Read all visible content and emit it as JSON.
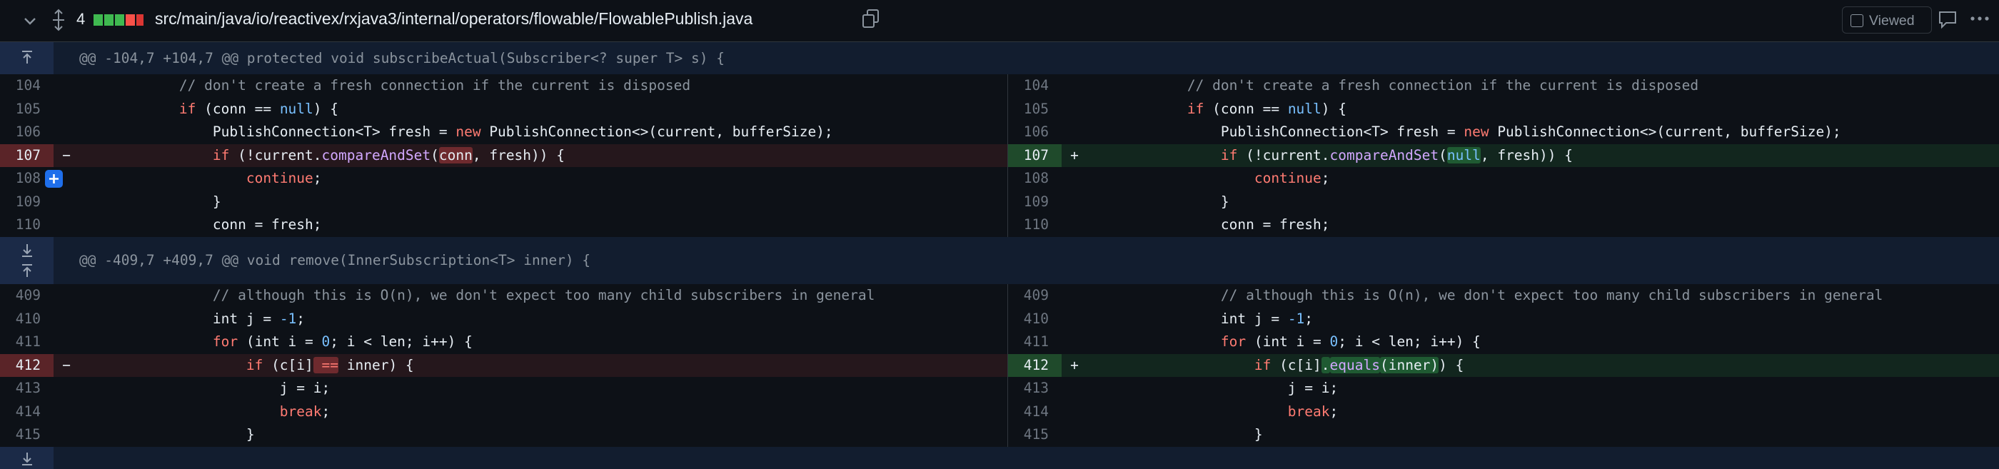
{
  "header": {
    "changes": "4",
    "path": "src/main/java/io/reactivex/rxjava3/internal/operators/flowable/FlowablePublish.java",
    "viewed": "Viewed"
  },
  "hunks": [
    {
      "title": "@@ -104,7 +104,7 @@ protected void subscribeActual(Subscriber<? super T> s) {",
      "rows": [
        {
          "left": {
            "num": "104",
            "type": "ctx",
            "tokens": [
              {
                "t": "        // don't create a fresh connection if the current is disposed",
                "s": "c"
              }
            ]
          },
          "right": {
            "num": "104",
            "type": "ctx",
            "tokens": [
              {
                "t": "        // don't create a fresh connection if the current is disposed",
                "s": "c"
              }
            ]
          }
        },
        {
          "left": {
            "num": "105",
            "type": "ctx",
            "tokens": [
              {
                "t": "        if",
                "s": "k"
              },
              {
                "t": " (conn == ",
                "s": "p"
              },
              {
                "t": "null",
                "s": "n"
              },
              {
                "t": ") {",
                "s": "p"
              }
            ]
          },
          "right": {
            "num": "105",
            "type": "ctx",
            "tokens": [
              {
                "t": "        if",
                "s": "k"
              },
              {
                "t": " (conn == ",
                "s": "p"
              },
              {
                "t": "null",
                "s": "n"
              },
              {
                "t": ") {",
                "s": "p"
              }
            ]
          }
        },
        {
          "left": {
            "num": "106",
            "type": "ctx",
            "tokens": [
              {
                "t": "            PublishConnection<T> fresh = ",
                "s": "p"
              },
              {
                "t": "new",
                "s": "k"
              },
              {
                "t": " PublishConnection<>(current, bufferSize);",
                "s": "p"
              }
            ]
          },
          "right": {
            "num": "106",
            "type": "ctx",
            "tokens": [
              {
                "t": "            PublishConnection<T> fresh = ",
                "s": "p"
              },
              {
                "t": "new",
                "s": "k"
              },
              {
                "t": " PublishConnection<>(current, bufferSize);",
                "s": "p"
              }
            ]
          }
        },
        {
          "left": {
            "num": "107",
            "type": "del",
            "sign": "−",
            "tokens": [
              {
                "t": "            if",
                "s": "k"
              },
              {
                "t": " (!current.",
                "s": "p"
              },
              {
                "t": "compareAndSet",
                "s": "f"
              },
              {
                "t": "(",
                "s": "p"
              },
              {
                "t": "conn",
                "s": "p",
                "h": true
              },
              {
                "t": ", fresh)) {",
                "s": "p"
              }
            ]
          },
          "right": {
            "num": "107",
            "type": "add",
            "sign": "+",
            "tokens": [
              {
                "t": "            if",
                "s": "k"
              },
              {
                "t": " (!current.",
                "s": "p"
              },
              {
                "t": "compareAndSet",
                "s": "f"
              },
              {
                "t": "(",
                "s": "p"
              },
              {
                "t": "null",
                "s": "n",
                "h": true
              },
              {
                "t": ", fresh)) {",
                "s": "p"
              }
            ]
          }
        },
        {
          "left": {
            "num": "108",
            "type": "ctx",
            "tokens": [
              {
                "t": "                continue",
                "s": "k"
              },
              {
                "t": ";",
                "s": "p"
              }
            ]
          },
          "right": {
            "num": "108",
            "type": "ctx",
            "tokens": [
              {
                "t": "                continue",
                "s": "k"
              },
              {
                "t": ";",
                "s": "p"
              }
            ]
          }
        },
        {
          "left": {
            "num": "109",
            "type": "ctx",
            "tokens": [
              {
                "t": "            }",
                "s": "p"
              }
            ]
          },
          "right": {
            "num": "109",
            "type": "ctx",
            "tokens": [
              {
                "t": "            }",
                "s": "p"
              }
            ]
          }
        },
        {
          "left": {
            "num": "110",
            "type": "ctx",
            "tokens": [
              {
                "t": "            conn = fresh;",
                "s": "p"
              }
            ]
          },
          "right": {
            "num": "110",
            "type": "ctx",
            "tokens": [
              {
                "t": "            conn = fresh;",
                "s": "p"
              }
            ]
          }
        }
      ]
    },
    {
      "title": "@@ -409,7 +409,7 @@ void remove(InnerSubscription<T> inner) {",
      "rows": [
        {
          "left": {
            "num": "409",
            "type": "ctx",
            "tokens": [
              {
                "t": "            // although this is O(n), we don't expect too many child subscribers in general",
                "s": "c"
              }
            ]
          },
          "right": {
            "num": "409",
            "type": "ctx",
            "tokens": [
              {
                "t": "            // although this is O(n), we don't expect too many child subscribers in general",
                "s": "c"
              }
            ]
          }
        },
        {
          "left": {
            "num": "410",
            "type": "ctx",
            "tokens": [
              {
                "t": "            int j = ",
                "s": "p"
              },
              {
                "t": "-1",
                "s": "n"
              },
              {
                "t": ";",
                "s": "p"
              }
            ]
          },
          "right": {
            "num": "410",
            "type": "ctx",
            "tokens": [
              {
                "t": "            int j = ",
                "s": "p"
              },
              {
                "t": "-1",
                "s": "n"
              },
              {
                "t": ";",
                "s": "p"
              }
            ]
          }
        },
        {
          "left": {
            "num": "411",
            "type": "ctx",
            "tokens": [
              {
                "t": "            for",
                "s": "k"
              },
              {
                "t": " (int i = ",
                "s": "p"
              },
              {
                "t": "0",
                "s": "n"
              },
              {
                "t": "; i < len; i++) {",
                "s": "p"
              }
            ]
          },
          "right": {
            "num": "411",
            "type": "ctx",
            "tokens": [
              {
                "t": "            for",
                "s": "k"
              },
              {
                "t": " (int i = ",
                "s": "p"
              },
              {
                "t": "0",
                "s": "n"
              },
              {
                "t": "; i < len; i++) {",
                "s": "p"
              }
            ]
          }
        },
        {
          "left": {
            "num": "412",
            "type": "del",
            "sign": "−",
            "tokens": [
              {
                "t": "                if",
                "s": "k"
              },
              {
                "t": " (c[i]",
                "s": "p"
              },
              {
                "t": " ==",
                "s": "k",
                "h": true
              },
              {
                "t": " inner) {",
                "s": "p"
              }
            ]
          },
          "right": {
            "num": "412",
            "type": "add",
            "sign": "+",
            "tokens": [
              {
                "t": "                if",
                "s": "k"
              },
              {
                "t": " (c[i]",
                "s": "p"
              },
              {
                "t": ".",
                "s": "p",
                "h": true
              },
              {
                "t": "equals",
                "s": "f",
                "h": true
              },
              {
                "t": "(inner)",
                "s": "p",
                "h": true
              },
              {
                "t": ") {",
                "s": "p"
              }
            ]
          }
        },
        {
          "left": {
            "num": "413",
            "type": "ctx",
            "tokens": [
              {
                "t": "                    j = i;",
                "s": "p"
              }
            ]
          },
          "right": {
            "num": "413",
            "type": "ctx",
            "tokens": [
              {
                "t": "                    j = i;",
                "s": "p"
              }
            ]
          }
        },
        {
          "left": {
            "num": "414",
            "type": "ctx",
            "tokens": [
              {
                "t": "                    break",
                "s": "k"
              },
              {
                "t": ";",
                "s": "p"
              }
            ]
          },
          "right": {
            "num": "414",
            "type": "ctx",
            "tokens": [
              {
                "t": "                    break",
                "s": "k"
              },
              {
                "t": ";",
                "s": "p"
              }
            ]
          }
        },
        {
          "left": {
            "num": "415",
            "type": "ctx",
            "tokens": [
              {
                "t": "                }",
                "s": "p"
              }
            ]
          },
          "right": {
            "num": "415",
            "type": "ctx",
            "tokens": [
              {
                "t": "                }",
                "s": "p"
              }
            ]
          }
        }
      ]
    }
  ]
}
